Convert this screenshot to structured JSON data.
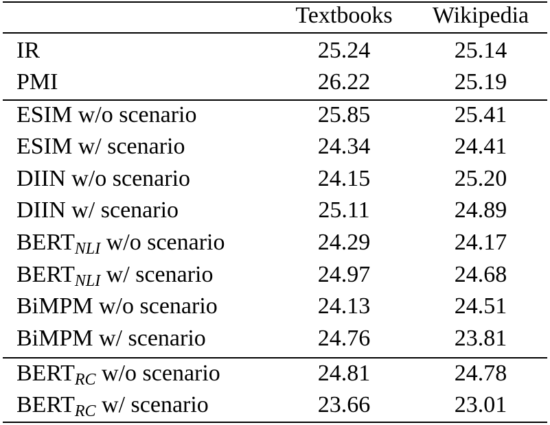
{
  "header": {
    "col_method": "",
    "col_textbooks": "Textbooks",
    "col_wikipedia": "Wikipedia"
  },
  "rows": [
    {
      "method": "IR",
      "sub": "",
      "suffix": "",
      "textbooks": "25.24",
      "wikipedia": "25.14"
    },
    {
      "method": "PMI",
      "sub": "",
      "suffix": "",
      "textbooks": "26.22",
      "wikipedia": "25.19"
    },
    {
      "method": "ESIM w/o scenario",
      "sub": "",
      "suffix": "",
      "textbooks": "25.85",
      "wikipedia": "25.41"
    },
    {
      "method": "ESIM w/ scenario",
      "sub": "",
      "suffix": "",
      "textbooks": "24.34",
      "wikipedia": "24.41"
    },
    {
      "method": "DIIN w/o scenario",
      "sub": "",
      "suffix": "",
      "textbooks": "24.15",
      "wikipedia": "25.20"
    },
    {
      "method": "DIIN w/ scenario",
      "sub": "",
      "suffix": "",
      "textbooks": "25.11",
      "wikipedia": "24.89"
    },
    {
      "method": "BERT",
      "sub": "NLI",
      "suffix": " w/o scenario",
      "textbooks": "24.29",
      "wikipedia": "24.17"
    },
    {
      "method": "BERT",
      "sub": "NLI",
      "suffix": " w/ scenario",
      "textbooks": "24.97",
      "wikipedia": "24.68"
    },
    {
      "method": "BiMPM w/o scenario",
      "sub": "",
      "suffix": "",
      "textbooks": "24.13",
      "wikipedia": "24.51"
    },
    {
      "method": "BiMPM w/ scenario",
      "sub": "",
      "suffix": "",
      "textbooks": "24.76",
      "wikipedia": "23.81"
    },
    {
      "method": "BERT",
      "sub": "RC",
      "suffix": " w/o scenario",
      "textbooks": "24.81",
      "wikipedia": "24.78"
    },
    {
      "method": "BERT",
      "sub": "RC",
      "suffix": " w/ scenario",
      "textbooks": "23.66",
      "wikipedia": "23.01"
    }
  ]
}
